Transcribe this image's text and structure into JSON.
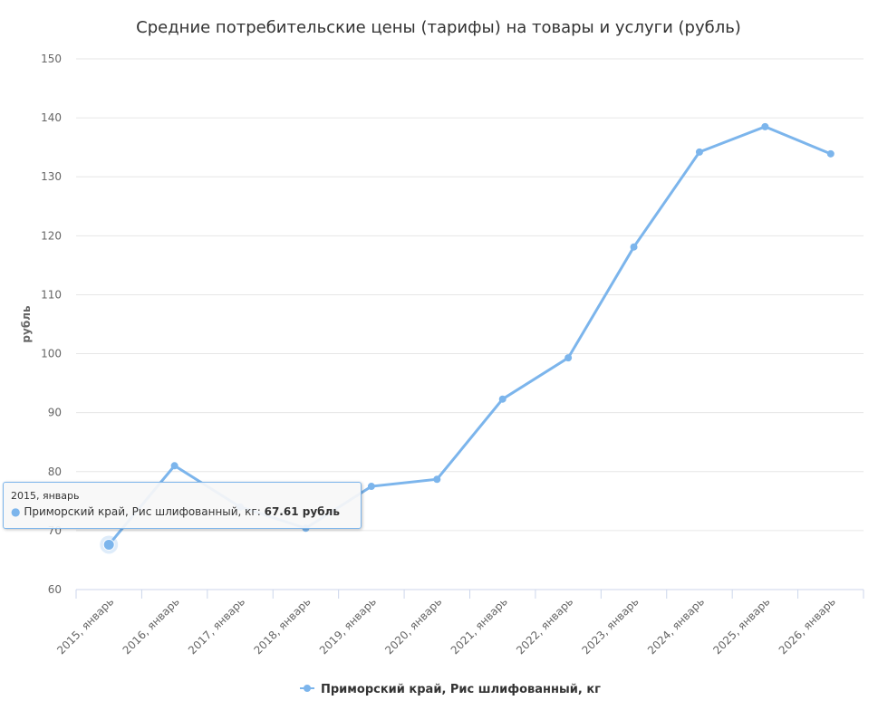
{
  "chart_data": {
    "type": "line",
    "title": "Средние потребительские цены (тарифы) на товары и услуги (рубль)",
    "ylabel": "рубль",
    "xlabel": "",
    "ylim": [
      60,
      150
    ],
    "yticks": [
      60,
      70,
      80,
      90,
      100,
      110,
      120,
      130,
      140,
      150
    ],
    "grid": true,
    "legend": "bottom",
    "color": "#7cb5ec",
    "categories": [
      "2015, январь",
      "2016, январь",
      "2017, январь",
      "2018, январь",
      "2019, январь",
      "2020, январь",
      "2021, январь",
      "2022, январь",
      "2023, январь",
      "2024, январь",
      "2025, январь",
      "2026, январь"
    ],
    "series": [
      {
        "name": "Приморский край, Рис шлифованный, кг",
        "values": [
          67.61,
          81.0,
          74.0,
          70.4,
          77.5,
          78.7,
          92.3,
          99.3,
          118.1,
          134.2,
          138.5,
          133.9
        ]
      }
    ],
    "tooltip": {
      "category": "2015, январь",
      "series": "Приморский край, Рис шлифованный, кг: ",
      "value": "67.61 рубль"
    }
  }
}
